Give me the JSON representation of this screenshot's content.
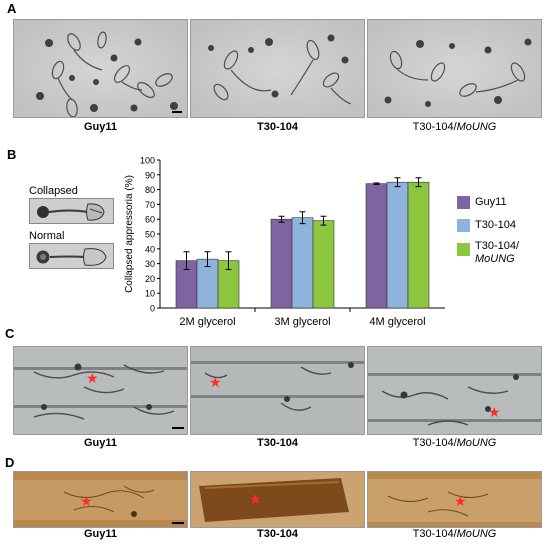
{
  "panels": {
    "a": {
      "label": "A",
      "captions": [
        "Guy11",
        "T30-104",
        "T30-104/",
        "MoUNG"
      ]
    },
    "b": {
      "label": "B",
      "thumb_labels": [
        "Collapsed",
        "Normal"
      ]
    },
    "c": {
      "label": "C",
      "captions": [
        "Guy11",
        "T30-104",
        "T30-104/",
        "MoUNG"
      ]
    },
    "d": {
      "label": "D",
      "captions": [
        "Guy11",
        "T30-104",
        "T30-104/",
        "MoUNG"
      ]
    }
  },
  "colors": {
    "guy11": "#8064a2",
    "t30_104": "#8fb4dc",
    "t30_104_moung": "#8cc63f"
  },
  "chart_data": {
    "type": "bar",
    "categories": [
      "2M glycerol",
      "3M glycerol",
      "4M glycerol"
    ],
    "ylabel": "Collapsed appressoria (%)",
    "ylim": [
      0,
      100
    ],
    "yticks": [
      "0",
      "10",
      "20",
      "30",
      "40",
      "50",
      "60",
      "70",
      "80",
      "90",
      "100"
    ],
    "series": [
      {
        "name": "Guy11",
        "values": [
          32,
          60,
          84
        ],
        "errors": [
          6,
          2,
          0.5
        ]
      },
      {
        "name": "T30-104",
        "values": [
          33,
          61,
          85
        ],
        "errors": [
          5,
          4,
          3
        ]
      },
      {
        "name": "T30-104/MoUNG",
        "values": [
          32,
          59,
          85
        ],
        "errors": [
          6,
          3,
          3
        ]
      }
    ],
    "legend": {
      "placement": "right",
      "entries": [
        "Guy11",
        "T30-104",
        "T30-104/",
        "MoUNG"
      ]
    }
  }
}
